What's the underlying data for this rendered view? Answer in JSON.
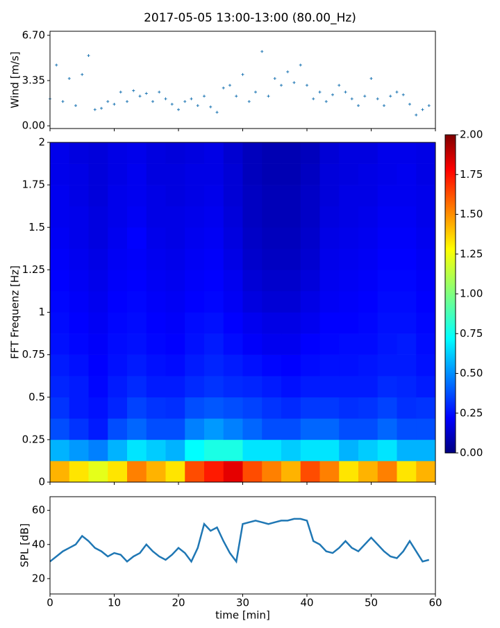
{
  "chart_data": [
    {
      "type": "scatter",
      "title": "2017-05-05 13:00-13:00 (80.00_Hz)",
      "ylabel": "Wind [m/s]",
      "color": "#1f77b4",
      "x": [
        0,
        1,
        2,
        3,
        4,
        5,
        6,
        7,
        8,
        9,
        10,
        11,
        12,
        13,
        14,
        15,
        16,
        17,
        18,
        19,
        20,
        21,
        22,
        23,
        24,
        25,
        26,
        27,
        28,
        29,
        30,
        31,
        32,
        33,
        34,
        35,
        36,
        37,
        38,
        39,
        40,
        41,
        42,
        43,
        44,
        45,
        46,
        47,
        48,
        49,
        50,
        51,
        52,
        53,
        54,
        55,
        56,
        57,
        58,
        59
      ],
      "values": [
        2.0,
        4.5,
        1.8,
        3.5,
        1.5,
        3.8,
        5.2,
        1.2,
        1.3,
        1.8,
        1.6,
        2.5,
        1.8,
        2.6,
        2.2,
        2.4,
        1.8,
        2.5,
        2.0,
        1.6,
        1.2,
        1.8,
        2.0,
        1.5,
        2.2,
        1.4,
        1.0,
        2.8,
        3.0,
        2.2,
        3.8,
        1.8,
        2.5,
        5.5,
        2.2,
        3.5,
        3.0,
        4.0,
        3.2,
        4.5,
        3.0,
        2.0,
        2.5,
        1.8,
        2.3,
        3.0,
        2.5,
        2.0,
        1.5,
        2.2,
        3.5,
        2.0,
        1.5,
        2.2,
        2.5,
        2.3,
        1.6,
        0.8,
        1.2,
        1.5
      ],
      "xlim": [
        0,
        60
      ],
      "xticks": [
        0,
        10,
        20,
        30,
        40,
        50,
        60
      ],
      "ylim": [
        -0.2,
        7.0
      ],
      "yticks": [
        {
          "value": 0,
          "label": "0.00"
        },
        {
          "value": 3.35,
          "label": "3.35"
        },
        {
          "value": 6.7,
          "label": "6.70"
        }
      ]
    },
    {
      "type": "heatmap",
      "ylabel": "FFT Frequenz [Hz]",
      "colormap": "jet",
      "xbins": [
        0,
        3,
        6,
        9,
        12,
        15,
        18,
        21,
        24,
        27,
        30,
        33,
        36,
        39,
        42,
        45,
        48,
        51,
        54,
        57,
        60
      ],
      "ybins": [
        0,
        0.125,
        0.25,
        0.375,
        0.5,
        0.625,
        0.75,
        0.875,
        1,
        1.125,
        1.25,
        1.375,
        1.5,
        1.625,
        1.75,
        1.875,
        2
      ],
      "values": [
        [
          1.4,
          1.3,
          1.2,
          1.3,
          1.5,
          1.4,
          1.3,
          1.6,
          1.7,
          1.8,
          1.6,
          1.5,
          1.4,
          1.6,
          1.5,
          1.3,
          1.4,
          1.5,
          1.3,
          1.4
        ],
        [
          0.6,
          0.55,
          0.5,
          0.6,
          0.7,
          0.65,
          0.6,
          0.75,
          0.8,
          0.8,
          0.7,
          0.7,
          0.65,
          0.7,
          0.7,
          0.6,
          0.65,
          0.7,
          0.6,
          0.6
        ],
        [
          0.4,
          0.35,
          0.3,
          0.4,
          0.45,
          0.4,
          0.4,
          0.5,
          0.55,
          0.5,
          0.45,
          0.4,
          0.4,
          0.45,
          0.45,
          0.4,
          0.4,
          0.45,
          0.4,
          0.4
        ],
        [
          0.35,
          0.3,
          0.28,
          0.32,
          0.38,
          0.35,
          0.34,
          0.4,
          0.42,
          0.4,
          0.38,
          0.35,
          0.33,
          0.36,
          0.36,
          0.34,
          0.35,
          0.38,
          0.34,
          0.35
        ],
        [
          0.32,
          0.3,
          0.26,
          0.3,
          0.33,
          0.3,
          0.3,
          0.33,
          0.35,
          0.33,
          0.32,
          0.3,
          0.28,
          0.3,
          0.3,
          0.3,
          0.3,
          0.33,
          0.32,
          0.3
        ],
        [
          0.3,
          0.28,
          0.25,
          0.28,
          0.3,
          0.28,
          0.27,
          0.3,
          0.32,
          0.3,
          0.28,
          0.26,
          0.25,
          0.27,
          0.28,
          0.28,
          0.29,
          0.3,
          0.3,
          0.28
        ],
        [
          0.28,
          0.26,
          0.24,
          0.27,
          0.28,
          0.26,
          0.25,
          0.28,
          0.3,
          0.27,
          0.24,
          0.22,
          0.22,
          0.25,
          0.26,
          0.27,
          0.27,
          0.29,
          0.3,
          0.27
        ],
        [
          0.27,
          0.25,
          0.23,
          0.26,
          0.27,
          0.25,
          0.24,
          0.27,
          0.28,
          0.25,
          0.22,
          0.2,
          0.2,
          0.22,
          0.25,
          0.25,
          0.26,
          0.28,
          0.28,
          0.26
        ],
        [
          0.26,
          0.24,
          0.22,
          0.25,
          0.26,
          0.24,
          0.23,
          0.25,
          0.26,
          0.23,
          0.19,
          0.17,
          0.17,
          0.2,
          0.23,
          0.24,
          0.25,
          0.27,
          0.27,
          0.25
        ],
        [
          0.25,
          0.23,
          0.21,
          0.24,
          0.25,
          0.23,
          0.22,
          0.24,
          0.25,
          0.22,
          0.17,
          0.15,
          0.15,
          0.18,
          0.22,
          0.23,
          0.24,
          0.26,
          0.26,
          0.24
        ],
        [
          0.24,
          0.22,
          0.2,
          0.23,
          0.24,
          0.22,
          0.21,
          0.23,
          0.24,
          0.2,
          0.15,
          0.13,
          0.13,
          0.16,
          0.21,
          0.22,
          0.23,
          0.25,
          0.25,
          0.23
        ],
        [
          0.23,
          0.21,
          0.19,
          0.22,
          0.25,
          0.21,
          0.2,
          0.22,
          0.23,
          0.19,
          0.14,
          0.12,
          0.12,
          0.15,
          0.2,
          0.21,
          0.22,
          0.24,
          0.24,
          0.22
        ],
        [
          0.22,
          0.21,
          0.19,
          0.21,
          0.23,
          0.2,
          0.2,
          0.21,
          0.22,
          0.18,
          0.13,
          0.11,
          0.11,
          0.14,
          0.19,
          0.2,
          0.21,
          0.23,
          0.23,
          0.21
        ],
        [
          0.22,
          0.2,
          0.18,
          0.21,
          0.22,
          0.2,
          0.19,
          0.2,
          0.21,
          0.17,
          0.13,
          0.11,
          0.11,
          0.14,
          0.18,
          0.2,
          0.2,
          0.22,
          0.22,
          0.21
        ],
        [
          0.21,
          0.2,
          0.18,
          0.2,
          0.22,
          0.19,
          0.19,
          0.2,
          0.2,
          0.17,
          0.12,
          0.1,
          0.1,
          0.13,
          0.18,
          0.19,
          0.2,
          0.21,
          0.22,
          0.2
        ],
        [
          0.21,
          0.19,
          0.18,
          0.2,
          0.21,
          0.19,
          0.18,
          0.19,
          0.2,
          0.16,
          0.12,
          0.1,
          0.1,
          0.12,
          0.17,
          0.19,
          0.19,
          0.21,
          0.21,
          0.2
        ]
      ],
      "xlim": [
        0,
        60
      ],
      "xticks": [
        0,
        10,
        20,
        30,
        40,
        50,
        60
      ],
      "ylim": [
        0,
        2
      ],
      "yticks": [
        0,
        0.25,
        0.5,
        0.75,
        1,
        1.25,
        1.5,
        1.75,
        2
      ],
      "colorbar": {
        "lim": [
          0,
          2
        ],
        "ticks": [
          {
            "value": 0,
            "label": "0.00"
          },
          {
            "value": 0.25,
            "label": "0.25"
          },
          {
            "value": 0.5,
            "label": "0.50"
          },
          {
            "value": 0.75,
            "label": "0.75"
          },
          {
            "value": 1,
            "label": "1.00"
          },
          {
            "value": 1.25,
            "label": "1.25"
          },
          {
            "value": 1.5,
            "label": "1.50"
          },
          {
            "value": 1.75,
            "label": "1.75"
          },
          {
            "value": 2,
            "label": "2.00"
          }
        ]
      }
    },
    {
      "type": "line",
      "ylabel": "SPL [dB]",
      "xlabel": "time [min]",
      "color": "#1f77b4",
      "x": [
        0,
        1,
        2,
        3,
        4,
        5,
        6,
        7,
        8,
        9,
        10,
        11,
        12,
        13,
        14,
        15,
        16,
        17,
        18,
        19,
        20,
        21,
        22,
        23,
        24,
        25,
        26,
        27,
        28,
        29,
        30,
        31,
        32,
        33,
        34,
        35,
        36,
        37,
        38,
        39,
        40,
        41,
        42,
        43,
        44,
        45,
        46,
        47,
        48,
        49,
        50,
        51,
        52,
        53,
        54,
        55,
        56,
        57,
        58,
        59
      ],
      "values": [
        30,
        33,
        36,
        38,
        40,
        45,
        42,
        38,
        36,
        33,
        35,
        34,
        30,
        33,
        35,
        40,
        36,
        33,
        31,
        34,
        38,
        35,
        30,
        38,
        52,
        48,
        50,
        42,
        35,
        30,
        52,
        53,
        54,
        53,
        52,
        53,
        54,
        54,
        55,
        55,
        54,
        42,
        40,
        36,
        35,
        38,
        42,
        38,
        36,
        40,
        44,
        40,
        36,
        33,
        32,
        36,
        42,
        36,
        30,
        31
      ],
      "xlim": [
        0,
        60
      ],
      "xticks": [
        0,
        10,
        20,
        30,
        40,
        50,
        60
      ],
      "ylim": [
        11,
        68
      ],
      "yticks": [
        20,
        40,
        60
      ]
    }
  ]
}
